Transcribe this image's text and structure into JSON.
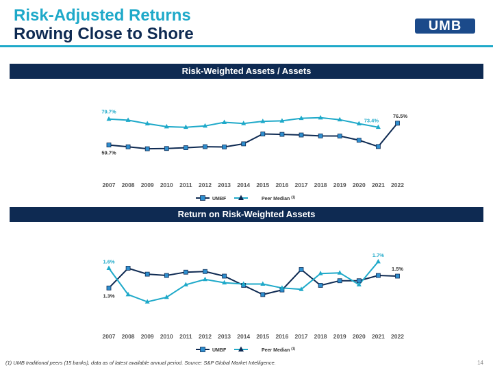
{
  "title": {
    "line1": "Risk-Adjusted Returns",
    "line2": "Rowing Close to Shore"
  },
  "logo": {
    "text": "UMB"
  },
  "colors": {
    "accent": "#1ea9c9",
    "navy": "#0e2a52",
    "umbf": "#0e2a52",
    "peer": "#1ea9c9"
  },
  "footnote": "(1) UMB traditional peers (15 banks), data as of latest available annual period. Source: S&P Global Market Intelligence.",
  "page_number": "14",
  "chart_data": [
    {
      "type": "line",
      "title": "Risk-Weighted Assets / Assets",
      "categories": [
        "2007",
        "2008",
        "2009",
        "2010",
        "2011",
        "2012",
        "2013",
        "2014",
        "2015",
        "2016",
        "2017",
        "2018",
        "2019",
        "2020",
        "2021",
        "2022"
      ],
      "series": [
        {
          "name": "UMBF",
          "values": [
            59.7,
            58.3,
            56.8,
            57.0,
            57.6,
            58.4,
            58.2,
            60.6,
            68.2,
            67.9,
            67.4,
            66.7,
            66.6,
            63.4,
            58.5,
            76.5
          ]
        },
        {
          "name": "Peer Median ",
          "name_sup": "(1)",
          "values": [
            79.7,
            78.8,
            76.1,
            73.8,
            73.4,
            74.4,
            77.2,
            76.3,
            77.9,
            78.3,
            80.3,
            80.7,
            79.2,
            76.1,
            73.4,
            null
          ]
        }
      ],
      "data_labels": [
        {
          "series": 1,
          "index": 0,
          "text": "79.7%"
        },
        {
          "series": 0,
          "index": 0,
          "text": "59.7%"
        },
        {
          "series": 1,
          "index": 14,
          "text": "73.4%"
        },
        {
          "series": 0,
          "index": 15,
          "text": "76.5%"
        }
      ],
      "ylim": [
        50,
        88
      ],
      "grid": false,
      "legend_position": "bottom"
    },
    {
      "type": "line",
      "title": "Return on Risk-Weighted Assets",
      "categories": [
        "2007",
        "2008",
        "2009",
        "2010",
        "2011",
        "2012",
        "2013",
        "2014",
        "2015",
        "2016",
        "2017",
        "2018",
        "2019",
        "2020",
        "2021",
        "2022"
      ],
      "series": [
        {
          "name": "UMBF",
          "values": [
            1.3,
            1.6,
            1.51,
            1.49,
            1.54,
            1.55,
            1.48,
            1.34,
            1.2,
            1.27,
            1.58,
            1.34,
            1.41,
            1.41,
            1.49,
            1.48
          ]
        },
        {
          "name": "Peer Median ",
          "name_sup": "(1)",
          "values": [
            1.6,
            1.2,
            1.09,
            1.16,
            1.35,
            1.43,
            1.38,
            1.36,
            1.36,
            1.3,
            1.28,
            1.52,
            1.53,
            1.35,
            1.7,
            null
          ]
        }
      ],
      "data_labels": [
        {
          "series": 1,
          "index": 0,
          "text": "1.6%"
        },
        {
          "series": 0,
          "index": 0,
          "text": "1.3%"
        },
        {
          "series": 1,
          "index": 14,
          "text": "1.7%"
        },
        {
          "series": 0,
          "index": 15,
          "text": "1.5%"
        }
      ],
      "ylim": [
        0.7,
        2.0
      ],
      "grid": false,
      "legend_position": "bottom"
    }
  ]
}
